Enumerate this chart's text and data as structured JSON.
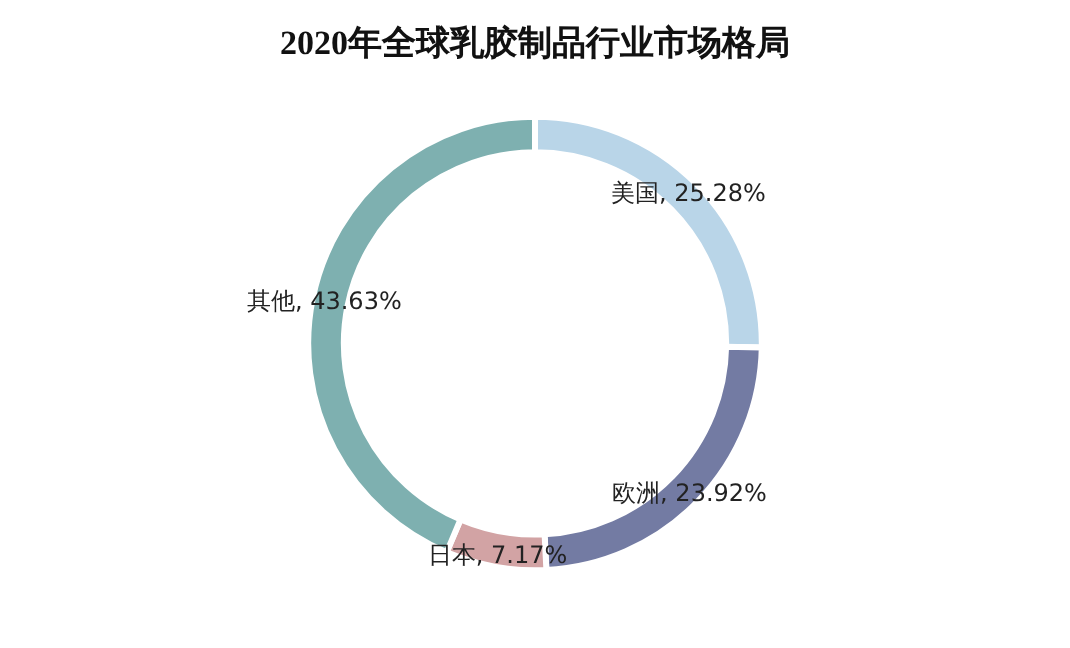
{
  "chart_data": {
    "type": "donut",
    "title": "2020年全球乳胶制品行业市场格局",
    "categories": [
      "美国",
      "欧洲",
      "日本",
      "其他"
    ],
    "values": [
      25.28,
      23.92,
      7.17,
      43.63
    ],
    "value_labels": [
      "25.28%",
      "23.92%",
      "7.17%",
      "43.63%"
    ],
    "colors": [
      "#b9d5e8",
      "#737ba3",
      "#d2a3a4",
      "#7eb0b0"
    ],
    "legend": false
  }
}
